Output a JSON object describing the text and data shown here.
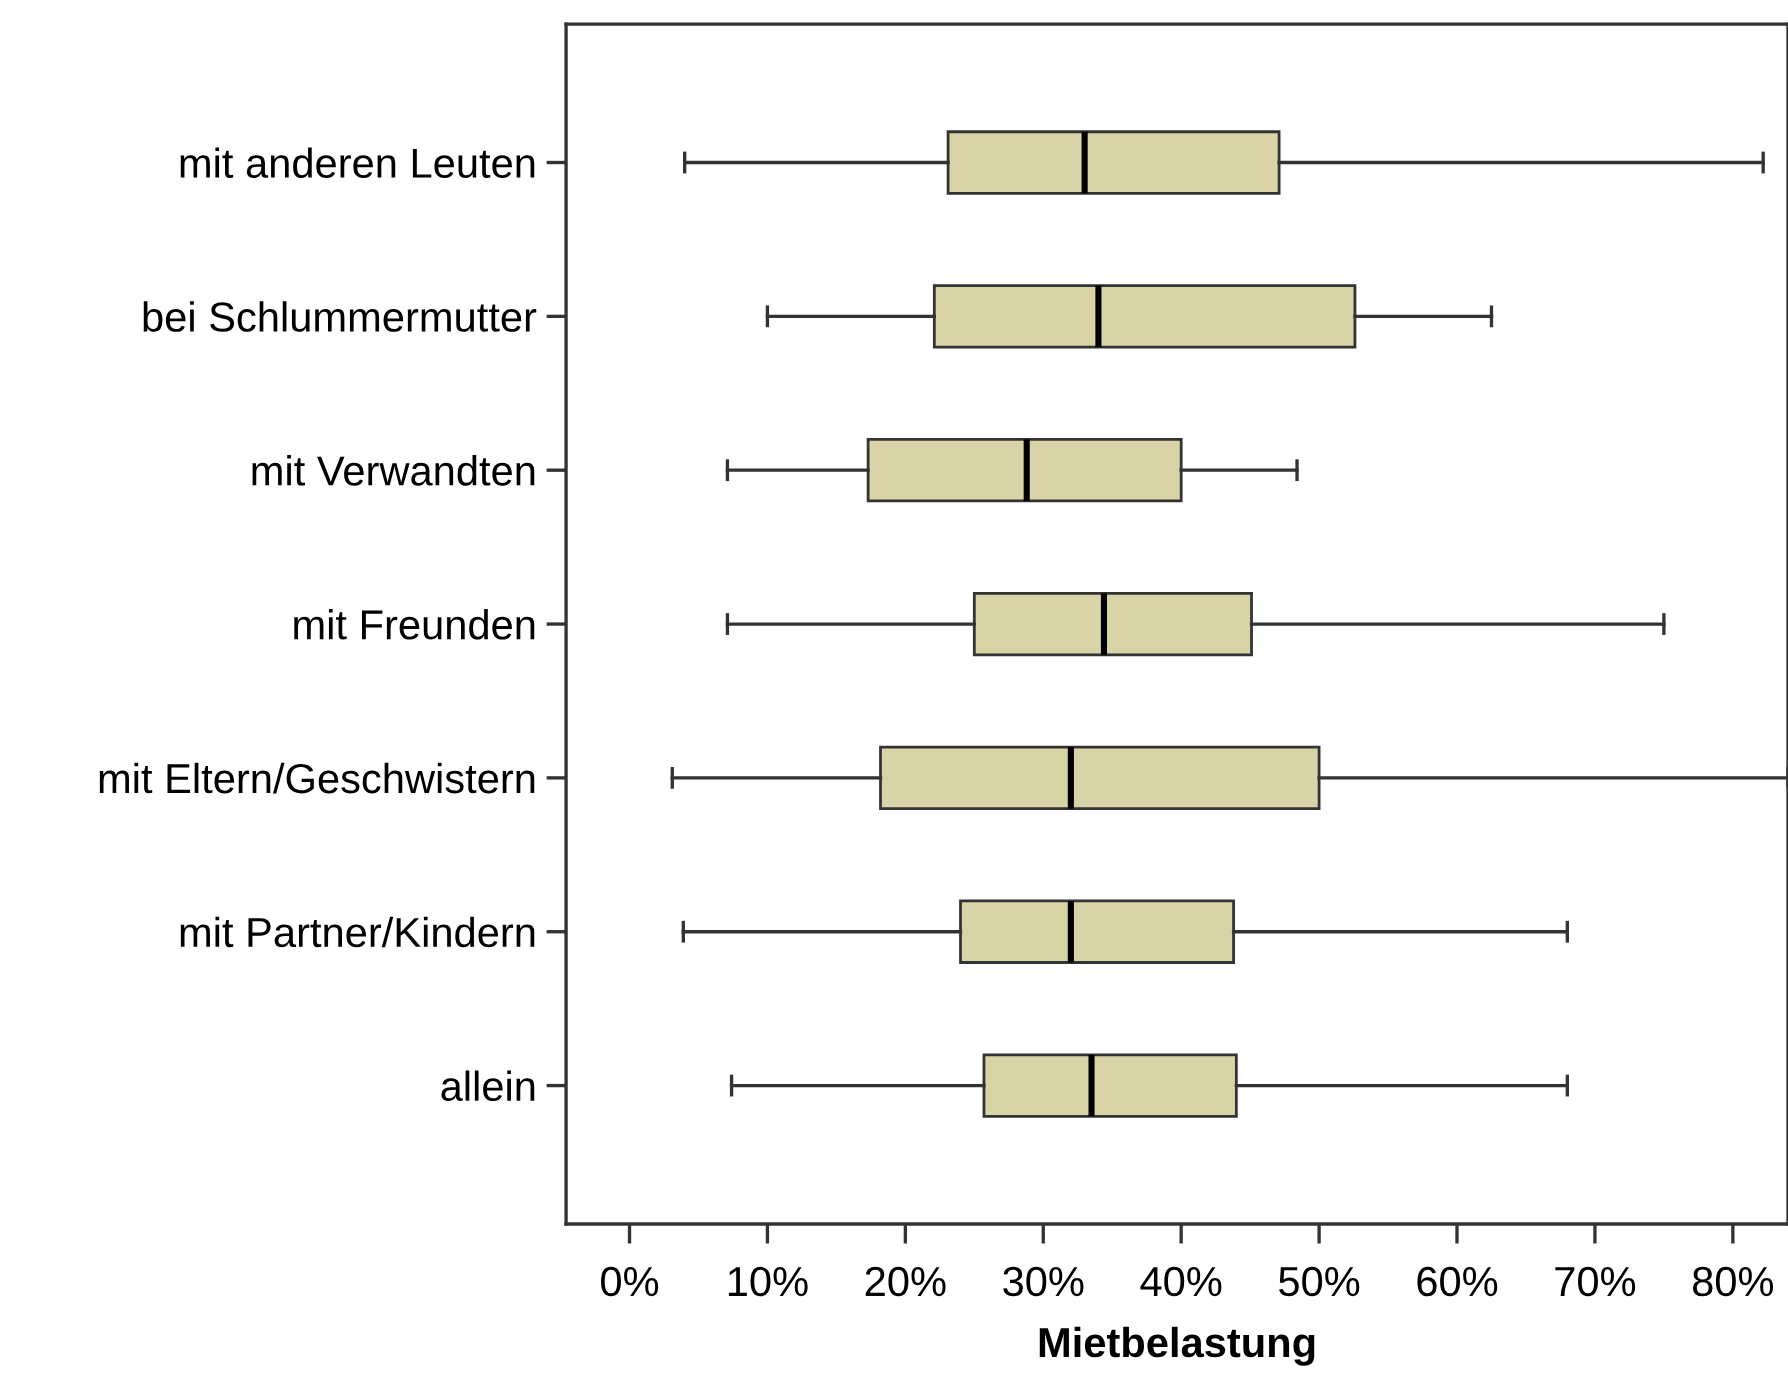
{
  "chart_data": {
    "type": "box",
    "orientation": "horizontal",
    "xlabel": "Mietbelastung",
    "categories": [
      "mit anderen Leuten",
      "bei Schlummermutter",
      "mit Verwandten",
      "mit Freunden",
      "mit Eltern/Geschwistern",
      "mit Partner/Kindern",
      "allein"
    ],
    "boxes": [
      {
        "low": 4.0,
        "q1": 23.1,
        "median": 33.0,
        "q3": 47.1,
        "high": 82.2
      },
      {
        "low": 10.0,
        "q1": 22.1,
        "median": 34.0,
        "q3": 52.6,
        "high": 62.5
      },
      {
        "low": 7.1,
        "q1": 17.3,
        "median": 28.8,
        "q3": 40.0,
        "high": 48.4
      },
      {
        "low": 7.1,
        "q1": 25.0,
        "median": 34.4,
        "q3": 45.1,
        "high": 75.0
      },
      {
        "low": 3.1,
        "q1": 18.2,
        "median": 32.0,
        "q3": 50.0,
        "high": 84.0
      },
      {
        "low": 3.9,
        "q1": 24.0,
        "median": 32.0,
        "q3": 43.8,
        "high": 68.0
      },
      {
        "low": 7.4,
        "q1": 25.7,
        "median": 33.5,
        "q3": 44.0,
        "high": 68.0
      }
    ],
    "color": "#d9d4a7",
    "xlim": [
      -4.6,
      84.0
    ],
    "xticks": [
      {
        "value": 0,
        "label": "0%"
      },
      {
        "value": 10,
        "label": "10%"
      },
      {
        "value": 20,
        "label": "20%"
      },
      {
        "value": 30,
        "label": "30%"
      },
      {
        "value": 40,
        "label": "40%"
      },
      {
        "value": 50,
        "label": "50%"
      },
      {
        "value": 60,
        "label": "60%"
      },
      {
        "value": 70,
        "label": "70%"
      },
      {
        "value": 80,
        "label": "80%"
      }
    ],
    "grid": false
  }
}
